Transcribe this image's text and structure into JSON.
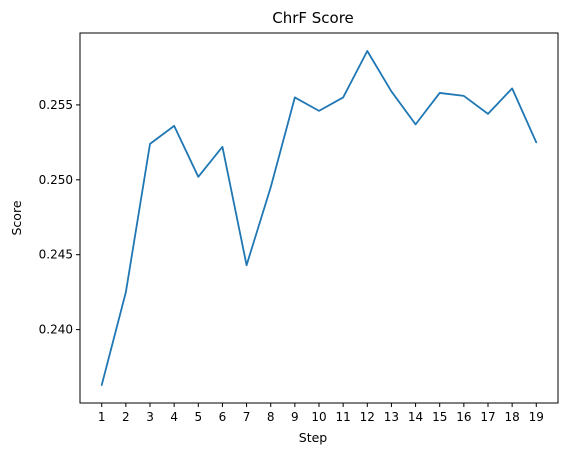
{
  "chart_data": {
    "type": "line",
    "title": "ChrF Score",
    "xlabel": "Step",
    "ylabel": "Score",
    "x": [
      1,
      2,
      3,
      4,
      5,
      6,
      7,
      8,
      9,
      10,
      11,
      12,
      13,
      14,
      15,
      16,
      17,
      18,
      19
    ],
    "xlim": [
      0.1,
      19.9
    ],
    "ylim": [
      0.2351,
      0.2598
    ],
    "yticks": [
      0.24,
      0.245,
      0.25,
      0.255
    ],
    "ytick_labels": [
      "0.240",
      "0.245",
      "0.250",
      "0.255"
    ],
    "grid": false,
    "series": [
      {
        "color": "#1f77b4",
        "values": [
          0.2363,
          0.2425,
          0.2524,
          0.2536,
          0.2502,
          0.2522,
          0.2443,
          0.2495,
          0.2555,
          0.2546,
          0.2555,
          0.2586,
          0.2559,
          0.2537,
          0.2558,
          0.2556,
          0.2544,
          0.2561,
          0.2525
        ]
      }
    ]
  }
}
